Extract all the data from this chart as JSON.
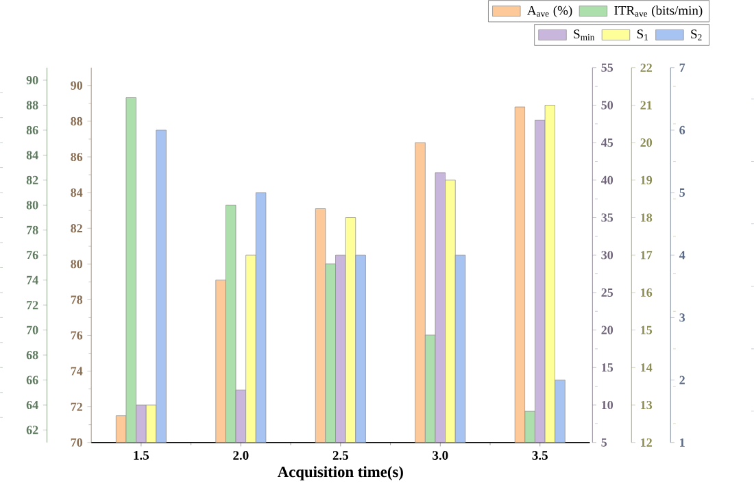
{
  "chart_data": [
    {
      "type": "bar",
      "xlabel": "Acquisition time(s)",
      "categories": [
        "1.5",
        "2.0",
        "2.5",
        "3.0",
        "3.5"
      ],
      "series": [
        {
          "name": "A$_{ave}$ (%)",
          "color": "#fdc998",
          "values": [
            71.5,
            79.1,
            83.1,
            86.8,
            88.8
          ]
        },
        {
          "name": "ITR$_{ave}$ (bits/min)",
          "color": "#addfad",
          "axis": "y2",
          "values": [
            88.6,
            80,
            75.3,
            69.6,
            63.5
          ]
        }
      ],
      "ylim": [
        70,
        91
      ],
      "yticks": [
        70,
        72,
        74,
        76,
        78,
        80,
        82,
        84,
        86,
        88,
        90
      ],
      "y2lim": [
        61,
        91
      ],
      "y2ticks": [
        62,
        64,
        66,
        68,
        70,
        72,
        74,
        76,
        78,
        80,
        82,
        84,
        86,
        88,
        90
      ],
      "legend": "top right",
      "grid": false
    },
    {
      "type": "bar",
      "categories": [
        "1.5",
        "2.0",
        "2.5",
        "3.0",
        "3.5"
      ],
      "series": [
        {
          "name": "S$_{min}$",
          "color": "#c9b6dc",
          "values": [
            10,
            12,
            30,
            41,
            48
          ]
        },
        {
          "name": "S$_{1}$",
          "color": "#ffff99",
          "axis": "y2",
          "values": [
            13,
            17,
            18,
            19,
            21
          ]
        },
        {
          "name": "S$_{2}$",
          "color": "#a7c3f2",
          "axis": "y3",
          "values": [
            6,
            5,
            4,
            4,
            2
          ]
        }
      ],
      "ylim": [
        5,
        55
      ],
      "yticks": [
        5,
        10,
        15,
        20,
        25,
        30,
        35,
        40,
        45,
        50,
        55
      ],
      "y2lim": [
        12,
        22
      ],
      "y2ticks": [
        12,
        13,
        14,
        15,
        16,
        17,
        18,
        19,
        20,
        21,
        22
      ],
      "y3lim": [
        1,
        7
      ],
      "y3ticks": [
        1,
        2,
        3,
        4,
        5,
        6,
        7
      ],
      "tick_labels": "y",
      "legend": "top right",
      "grid": false
    }
  ]
}
